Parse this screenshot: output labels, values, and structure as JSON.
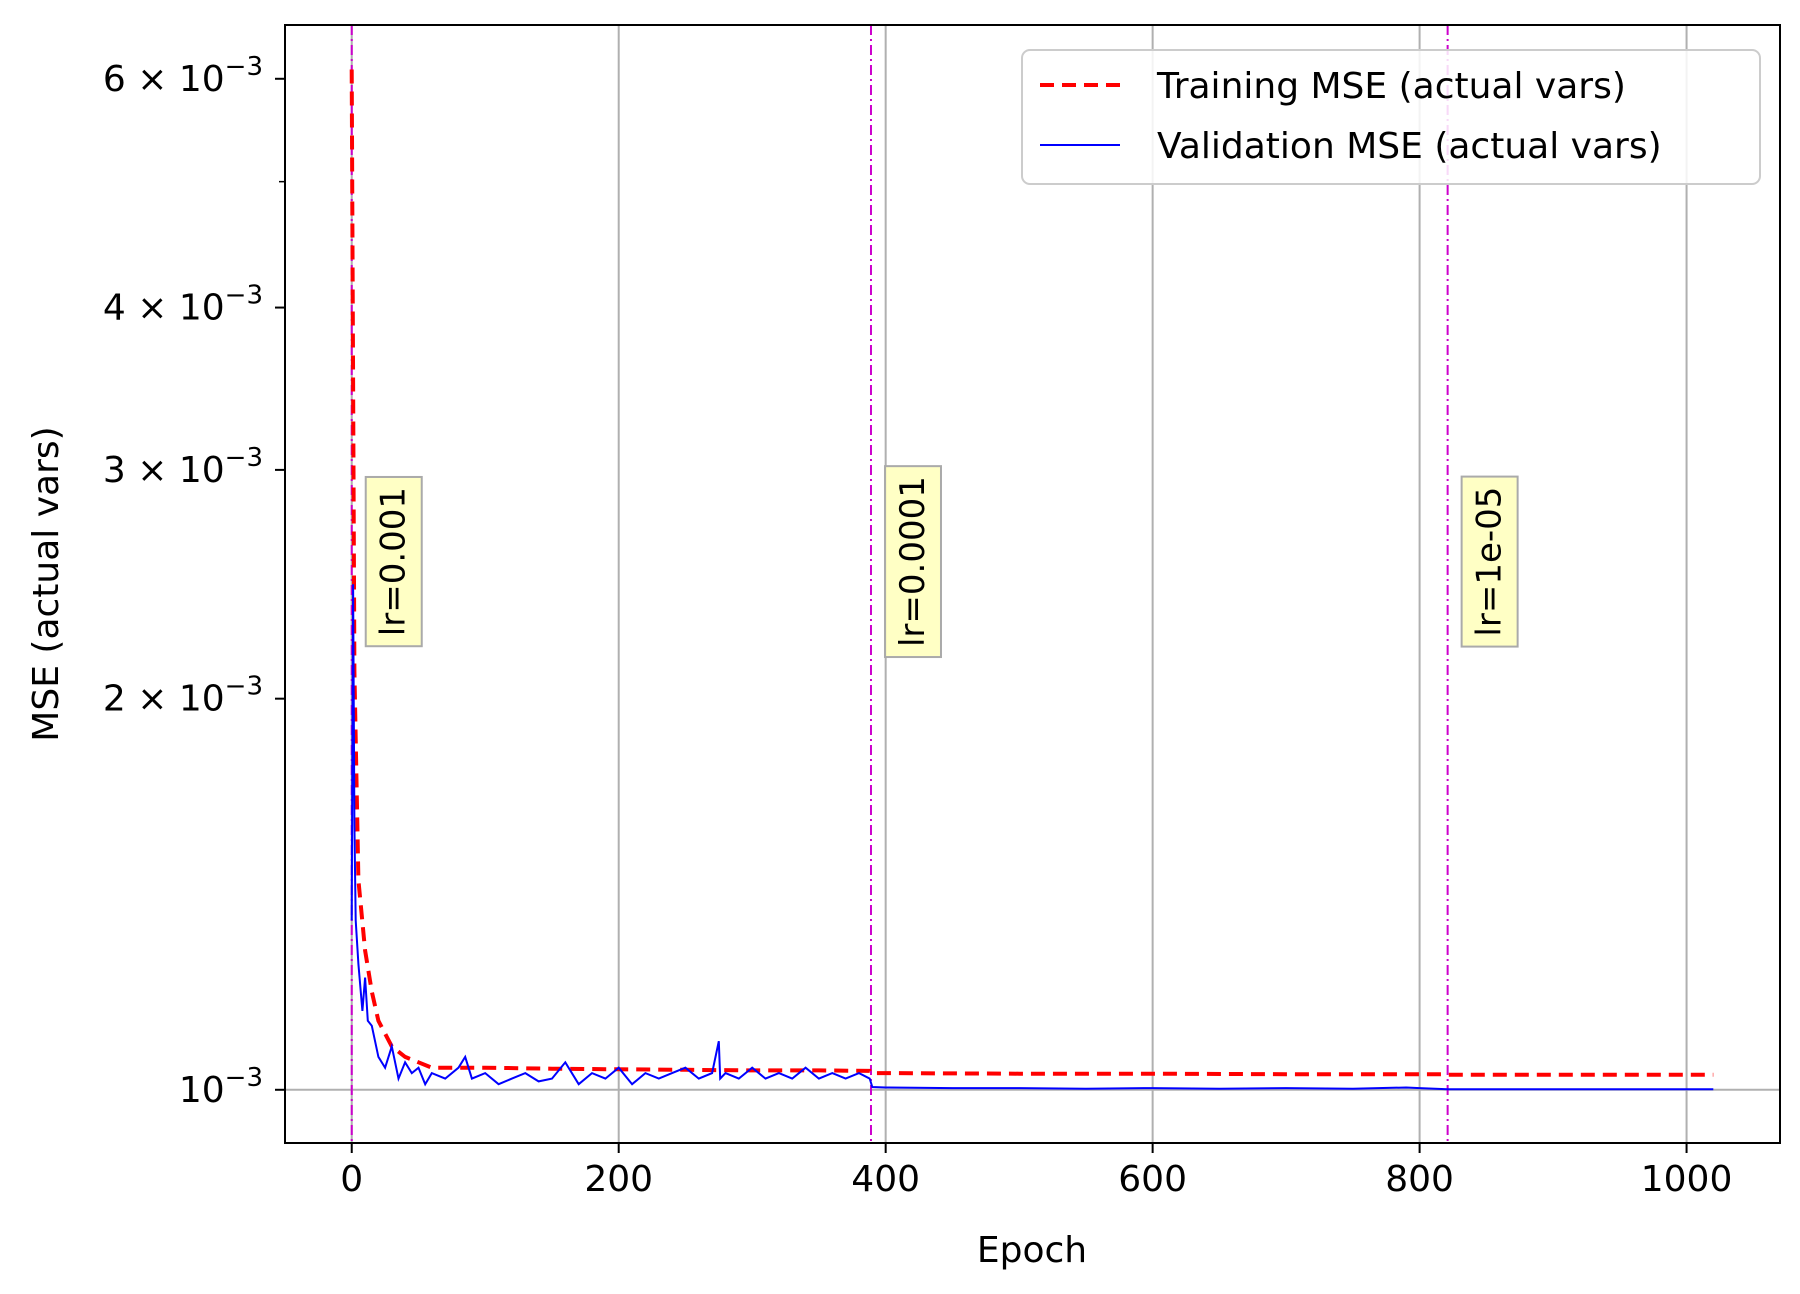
{
  "chart_data": {
    "type": "line",
    "title": "",
    "xlabel": "Epoch",
    "ylabel": "MSE (actual vars)",
    "xlim": [
      -50,
      1070
    ],
    "ylim": [
      0.00091,
      0.0066
    ],
    "yscale": "log",
    "grid": true,
    "legend_position": "top-right",
    "x_ticks": [
      {
        "value": 0,
        "label": "0"
      },
      {
        "value": 200,
        "label": "200"
      },
      {
        "value": 400,
        "label": "400"
      },
      {
        "value": 600,
        "label": "600"
      },
      {
        "value": 800,
        "label": "800"
      },
      {
        "value": 1000,
        "label": "1000"
      }
    ],
    "y_ticks": [
      {
        "value": 0.001,
        "mantissa": "10",
        "exp": "−3"
      },
      {
        "value": 0.002,
        "mantissa": "2 × 10",
        "exp": "−3"
      },
      {
        "value": 0.003,
        "mantissa": "3 × 10",
        "exp": "−3"
      },
      {
        "value": 0.004,
        "mantissa": "4 × 10",
        "exp": "−3"
      },
      {
        "value": 0.006,
        "mantissa": "6 × 10",
        "exp": "−3"
      }
    ],
    "y_minor_ticks": [
      0.005
    ],
    "series": [
      {
        "name": "Training MSE (actual vars)",
        "color": "#ff0000",
        "style": "dashed",
        "x": [
          0,
          2,
          5,
          10,
          15,
          20,
          30,
          40,
          50,
          60,
          80,
          100,
          150,
          200,
          250,
          300,
          350,
          388,
          389,
          400,
          500,
          600,
          700,
          800,
          820,
          821,
          900,
          1000,
          1020
        ],
        "y": [
          0.0061,
          0.0021,
          0.00145,
          0.00128,
          0.00119,
          0.00113,
          0.00108,
          0.00106,
          0.00105,
          0.00104,
          0.00104,
          0.00104,
          0.001038,
          0.001037,
          0.001036,
          0.001035,
          0.001035,
          0.001034,
          0.00103,
          0.00103,
          0.001029,
          0.001029,
          0.001028,
          0.001028,
          0.001028,
          0.001027,
          0.001027,
          0.001027,
          0.001027
        ]
      },
      {
        "name": "Validation MSE (actual vars)",
        "color": "#0000ff",
        "style": "solid",
        "x": [
          0,
          1,
          2,
          3,
          5,
          8,
          10,
          12,
          15,
          20,
          25,
          30,
          35,
          40,
          45,
          50,
          55,
          60,
          70,
          80,
          85,
          90,
          100,
          110,
          120,
          130,
          140,
          150,
          160,
          170,
          180,
          190,
          200,
          210,
          220,
          230,
          240,
          250,
          260,
          270,
          275,
          276,
          280,
          290,
          300,
          310,
          320,
          330,
          340,
          350,
          360,
          370,
          380,
          388,
          390,
          400,
          450,
          500,
          550,
          600,
          650,
          700,
          750,
          790,
          800,
          821,
          850,
          900,
          950,
          1000,
          1020
        ],
        "y": [
          0.00135,
          0.00245,
          0.0016,
          0.00135,
          0.00125,
          0.00115,
          0.00122,
          0.00113,
          0.00112,
          0.00106,
          0.00104,
          0.00108,
          0.00102,
          0.00105,
          0.00103,
          0.00104,
          0.00101,
          0.00103,
          0.00102,
          0.00104,
          0.00106,
          0.00102,
          0.00103,
          0.00101,
          0.00102,
          0.00103,
          0.001015,
          0.00102,
          0.00105,
          0.00101,
          0.00103,
          0.00102,
          0.00104,
          0.00101,
          0.00103,
          0.00102,
          0.00103,
          0.00104,
          0.00102,
          0.00103,
          0.00109,
          0.00102,
          0.00103,
          0.00102,
          0.00104,
          0.00102,
          0.00103,
          0.00102,
          0.00104,
          0.00102,
          0.00103,
          0.00102,
          0.00103,
          0.00102,
          0.001005,
          0.001004,
          0.001003,
          0.001003,
          0.001002,
          0.001003,
          0.001002,
          0.001003,
          0.001002,
          0.001004,
          0.001003,
          0.001001,
          0.001001,
          0.001001,
          0.001001,
          0.001001,
          0.001001
        ]
      }
    ],
    "vlines": [
      {
        "x": 0,
        "label": "lr=0.001",
        "label_y": 0.00255,
        "color": "#cc00cc"
      },
      {
        "x": 389,
        "label": "lr=0.0001",
        "label_y": 0.00255,
        "color": "#cc00cc"
      },
      {
        "x": 821,
        "label": "lr=1e-05",
        "label_y": 0.00255,
        "color": "#cc00cc"
      }
    ],
    "annotation_box_color": "#ffffbb"
  }
}
